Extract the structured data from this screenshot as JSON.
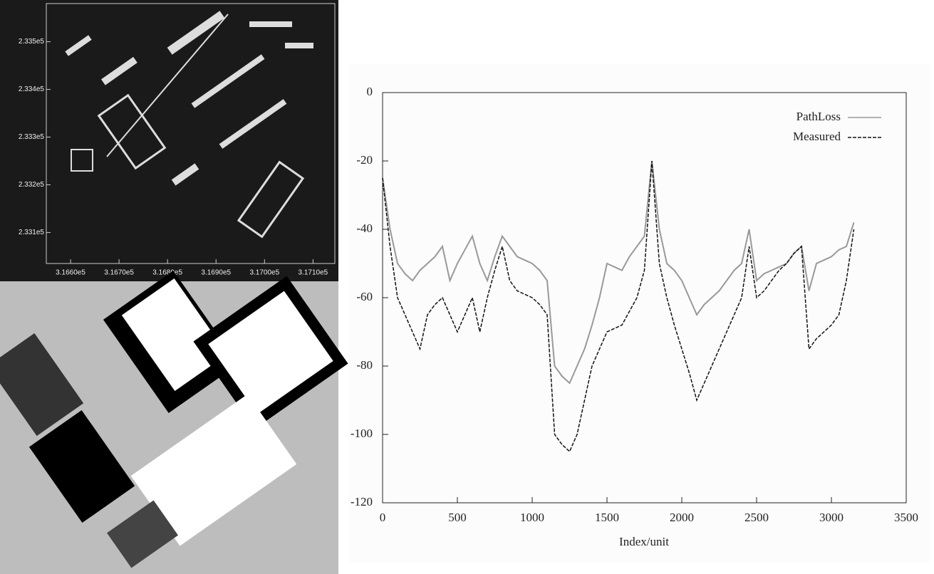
{
  "chart_data": [
    {
      "type": "map",
      "xlim": [
        316550,
        317145
      ],
      "xticks": [
        {
          "value": 316600,
          "label": "3.1660e5"
        },
        {
          "value": 316700,
          "label": "3.1670e5"
        },
        {
          "value": 316800,
          "label": "3.1680e5"
        },
        {
          "value": 316900,
          "label": "3.1690e5"
        },
        {
          "value": 317000,
          "label": "3.1700e5"
        },
        {
          "value": 317100,
          "label": "3.1710e5"
        }
      ],
      "ylim": [
        233035,
        233580
      ],
      "yticks": [
        {
          "value": 233100,
          "label": "2.331e5"
        },
        {
          "value": 233200,
          "label": "2.332e5"
        },
        {
          "value": 233300,
          "label": "2.333e5"
        },
        {
          "value": 233400,
          "label": "2.334e5"
        },
        {
          "value": 233500,
          "label": "2.335e5"
        }
      ]
    },
    {
      "type": "line",
      "x_label": "Index/unit",
      "x": [
        0,
        50,
        100,
        150,
        200,
        250,
        300,
        350,
        400,
        450,
        500,
        550,
        600,
        650,
        700,
        750,
        800,
        850,
        900,
        950,
        1000,
        1050,
        1100,
        1150,
        1200,
        1250,
        1300,
        1350,
        1400,
        1450,
        1500,
        1550,
        1600,
        1650,
        1700,
        1750,
        1800,
        1850,
        1900,
        1950,
        2000,
        2050,
        2100,
        2150,
        2200,
        2250,
        2300,
        2350,
        2400,
        2450,
        2500,
        2550,
        2600,
        2650,
        2700,
        2750,
        2800,
        2850,
        2900,
        2950,
        3000,
        3050,
        3100,
        3150
      ],
      "series": [
        {
          "name": "PathLoss",
          "color": "#999999",
          "values": [
            -25,
            -40,
            -50,
            -53,
            -55,
            -52,
            -50,
            -48,
            -45,
            -55,
            -50,
            -46,
            -42,
            -50,
            -55,
            -48,
            -42,
            -45,
            -48,
            -49,
            -50,
            -52,
            -55,
            -80,
            -83,
            -85,
            -80,
            -75,
            -68,
            -60,
            -50,
            -51,
            -52,
            -48,
            -45,
            -42,
            -20,
            -40,
            -50,
            -52,
            -55,
            -60,
            -65,
            -62,
            -60,
            -58,
            -55,
            -52,
            -50,
            -40,
            -55,
            -53,
            -52,
            -51,
            -50,
            -47,
            -45,
            -58,
            -50,
            -49,
            -48,
            -46,
            -45,
            -38
          ]
        },
        {
          "name": "Measured",
          "color": "#111111",
          "values": [
            -25,
            -45,
            -60,
            -65,
            -70,
            -75,
            -65,
            -62,
            -60,
            -65,
            -70,
            -65,
            -60,
            -70,
            -60,
            -52,
            -45,
            -55,
            -58,
            -59,
            -60,
            -62,
            -65,
            -100,
            -103,
            -105,
            -100,
            -90,
            -80,
            -75,
            -70,
            -69,
            -68,
            -64,
            -60,
            -52,
            -20,
            -50,
            -60,
            -68,
            -75,
            -82,
            -90,
            -85,
            -80,
            -75,
            -70,
            -65,
            -60,
            -45,
            -60,
            -58,
            -55,
            -52,
            -50,
            -47,
            -45,
            -75,
            -72,
            -70,
            -68,
            -65,
            -55,
            -40
          ]
        }
      ],
      "xlim": [
        0,
        3500
      ],
      "xticks": [
        0,
        500,
        1000,
        1500,
        2000,
        2500,
        3000,
        3500
      ],
      "ylim": [
        -120,
        0
      ],
      "yticks": [
        -120,
        -100,
        -80,
        -60,
        -40,
        -20,
        0
      ],
      "legend": "top-right"
    }
  ]
}
